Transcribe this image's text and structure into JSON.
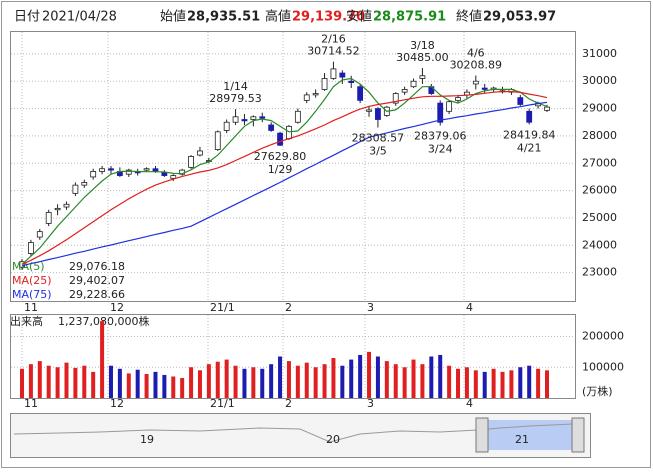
{
  "header": {
    "date_label": "日付",
    "date": "2021/04/28",
    "items": [
      {
        "label": "始値",
        "value": "28,935.51"
      },
      {
        "label": "高値",
        "value": "29,139.70"
      },
      {
        "label": "安値",
        "value": "28,875.91"
      },
      {
        "label": "終値",
        "value": "29,053.97"
      }
    ]
  },
  "chart_data": {
    "type": "candlestick",
    "ylim": [
      22000,
      31800
    ],
    "yticks": [
      23000,
      24000,
      25000,
      26000,
      27000,
      28000,
      29000,
      30000,
      31000
    ],
    "grid": true,
    "xticks": [
      "11",
      "12",
      "21/1",
      "2",
      "3",
      "4"
    ],
    "up_color": "#ffffff",
    "down_color": "#1c1cb0",
    "wick_color": "#222222",
    "ohlc": [
      [
        23200,
        23500,
        23100,
        23400
      ],
      [
        23700,
        24200,
        23600,
        24100
      ],
      [
        24300,
        24600,
        24200,
        24500
      ],
      [
        24800,
        25300,
        24700,
        25200
      ],
      [
        25300,
        25500,
        25100,
        25350
      ],
      [
        25400,
        25600,
        25300,
        25500
      ],
      [
        25900,
        26300,
        25800,
        26200
      ],
      [
        26200,
        26400,
        26100,
        26300
      ],
      [
        26500,
        26800,
        26400,
        26700
      ],
      [
        26700,
        26900,
        26600,
        26800
      ],
      [
        26800,
        26900,
        26600,
        26750
      ],
      [
        26700,
        26850,
        26500,
        26550
      ],
      [
        26600,
        26800,
        26500,
        26750
      ],
      [
        26700,
        26800,
        26550,
        26650
      ],
      [
        26750,
        26850,
        26700,
        26800
      ],
      [
        26800,
        26900,
        26650,
        26700
      ],
      [
        26650,
        26750,
        26500,
        26550
      ],
      [
        26450,
        26600,
        26350,
        26550
      ],
      [
        26600,
        26800,
        26550,
        26750
      ],
      [
        26850,
        27300,
        26800,
        27250
      ],
      [
        27300,
        27600,
        27250,
        27450
      ],
      [
        27100,
        27200,
        27000,
        27100
      ],
      [
        27500,
        28200,
        27450,
        28150
      ],
      [
        28200,
        28600,
        28100,
        28500
      ],
      [
        28500,
        28979.53,
        28400,
        28700
      ],
      [
        28600,
        28800,
        28400,
        28550
      ],
      [
        28600,
        28750,
        28350,
        28700
      ],
      [
        28700,
        28850,
        28500,
        28650
      ],
      [
        28400,
        28500,
        28150,
        28200
      ],
      [
        28100,
        28150,
        27629.8,
        27660
      ],
      [
        27900,
        28400,
        27850,
        28350
      ],
      [
        28500,
        29000,
        28450,
        28900
      ],
      [
        29300,
        29600,
        29200,
        29500
      ],
      [
        29500,
        29700,
        29400,
        29550
      ],
      [
        29700,
        30300,
        29650,
        30100
      ],
      [
        30100,
        30714.52,
        30050,
        30450
      ],
      [
        30300,
        30400,
        29900,
        30150
      ],
      [
        30000,
        30200,
        29750,
        29950
      ],
      [
        29800,
        29900,
        29200,
        29300
      ],
      [
        28900,
        29100,
        28700,
        28950
      ],
      [
        29000,
        29050,
        28308.57,
        28600
      ],
      [
        28750,
        29100,
        28700,
        29050
      ],
      [
        29200,
        29600,
        29100,
        29550
      ],
      [
        29600,
        29800,
        29500,
        29700
      ],
      [
        29800,
        30100,
        29750,
        30000
      ],
      [
        30100,
        30485.0,
        29900,
        30200
      ],
      [
        29800,
        29900,
        29500,
        29550
      ],
      [
        29200,
        29300,
        28379.06,
        28500
      ],
      [
        28900,
        29300,
        28800,
        29250
      ],
      [
        29300,
        29500,
        29200,
        29400
      ],
      [
        29500,
        29700,
        29350,
        29600
      ],
      [
        29900,
        30208.89,
        29700,
        30000
      ],
      [
        29750,
        29900,
        29550,
        29700
      ],
      [
        29700,
        29800,
        29600,
        29750
      ],
      [
        29650,
        29800,
        29550,
        29650
      ],
      [
        29600,
        29750,
        29500,
        29700
      ],
      [
        29400,
        29500,
        29100,
        29150
      ],
      [
        28900,
        29000,
        28419.84,
        28500
      ],
      [
        29100,
        29250,
        29000,
        29200
      ],
      [
        28935.51,
        29139.7,
        28875.91,
        29053.97
      ]
    ],
    "ma": [
      {
        "name": "MA(5)",
        "color": "#2a8a2a",
        "value_label": "29,076.18",
        "values": [
          23300,
          23600,
          23900,
          24300,
          24700,
          25050,
          25400,
          25750,
          26050,
          26350,
          26600,
          26700,
          26710,
          26700,
          26690,
          26690,
          26680,
          26630,
          26620,
          26760,
          26950,
          27050,
          27300,
          27650,
          28000,
          28350,
          28560,
          28620,
          28560,
          28350,
          28150,
          28180,
          28500,
          28900,
          29330,
          29800,
          30050,
          30100,
          29900,
          29600,
          29200,
          28900,
          28950,
          29200,
          29500,
          29800,
          29800,
          29500,
          29300,
          29200,
          29350,
          29550,
          29650,
          29700,
          29700,
          29700,
          29600,
          29350,
          29200,
          29076.18
        ]
      },
      {
        "name": "MA(25)",
        "color": "#e02020",
        "value_label": "29,402.07",
        "values": [
          23300,
          23450,
          23620,
          23800,
          24000,
          24200,
          24420,
          24640,
          24860,
          25080,
          25300,
          25500,
          25700,
          25880,
          26050,
          26200,
          26320,
          26420,
          26520,
          26600,
          26680,
          26740,
          26830,
          26950,
          27100,
          27250,
          27400,
          27550,
          27680,
          27800,
          27900,
          28000,
          28130,
          28260,
          28400,
          28560,
          28700,
          28850,
          28980,
          29080,
          29150,
          29200,
          29260,
          29320,
          29380,
          29430,
          29450,
          29450,
          29460,
          29470,
          29490,
          29520,
          29560,
          29600,
          29620,
          29620,
          29590,
          29530,
          29470,
          29402.07
        ]
      },
      {
        "name": "MA(75)",
        "color": "#2030e0",
        "value_label": "29,228.66",
        "values": [
          23250,
          23330,
          23400,
          23480,
          23550,
          23630,
          23710,
          23780,
          23860,
          23940,
          24010,
          24090,
          24170,
          24240,
          24320,
          24400,
          24470,
          24550,
          24620,
          24700,
          24860,
          25020,
          25180,
          25340,
          25500,
          25660,
          25820,
          25980,
          26140,
          26300,
          26470,
          26630,
          26800,
          26960,
          27130,
          27290,
          27460,
          27620,
          27790,
          27950,
          28030,
          28110,
          28190,
          28270,
          28340,
          28420,
          28500,
          28580,
          28630,
          28690,
          28740,
          28800,
          28850,
          28910,
          28960,
          29020,
          29070,
          29130,
          29180,
          29228.66
        ]
      }
    ],
    "annotations": [
      {
        "kind": "high",
        "date": "1/14",
        "value": 28979.53,
        "value_label": "28979.53"
      },
      {
        "kind": "high",
        "date": "2/16",
        "value": 30714.52,
        "value_label": "30714.52"
      },
      {
        "kind": "high",
        "date": "3/18",
        "value": 30485.0,
        "value_label": "30485.00"
      },
      {
        "kind": "high",
        "date": "4/6",
        "value": 30208.89,
        "value_label": "30208.89"
      },
      {
        "kind": "low",
        "date": "1/29",
        "value": 27629.8,
        "value_label": "27629.80"
      },
      {
        "kind": "low",
        "date": "3/5",
        "value": 28308.57,
        "value_label": "28308.57"
      },
      {
        "kind": "low",
        "date": "3/24",
        "value": 28379.06,
        "value_label": "28379.06"
      },
      {
        "kind": "low",
        "date": "4/21",
        "value": 28419.84,
        "value_label": "28419.84"
      }
    ],
    "volume": {
      "title": "出来高",
      "total": "1,237,080,000株",
      "unit": "(万株)",
      "up_color": "#e02020",
      "down_color": "#1c1cb0",
      "ylim": [
        0,
        270000
      ],
      "yticks": [
        100000,
        200000
      ],
      "values": [
        95000,
        110000,
        120000,
        105000,
        100000,
        115000,
        98000,
        105000,
        85000,
        250000,
        105000,
        95000,
        80000,
        92000,
        78000,
        85000,
        75000,
        70000,
        65000,
        100000,
        90000,
        110000,
        118000,
        125000,
        105000,
        95000,
        100000,
        95000,
        110000,
        135000,
        120000,
        105000,
        115000,
        100000,
        110000,
        130000,
        105000,
        125000,
        140000,
        150000,
        135000,
        120000,
        110000,
        100000,
        125000,
        110000,
        135000,
        140000,
        105000,
        95000,
        100000,
        90000,
        85000,
        95000,
        85000,
        90000,
        100000,
        105000,
        95000,
        90000
      ]
    },
    "navigator": {
      "labels": [
        "19",
        "20",
        "21"
      ]
    }
  }
}
